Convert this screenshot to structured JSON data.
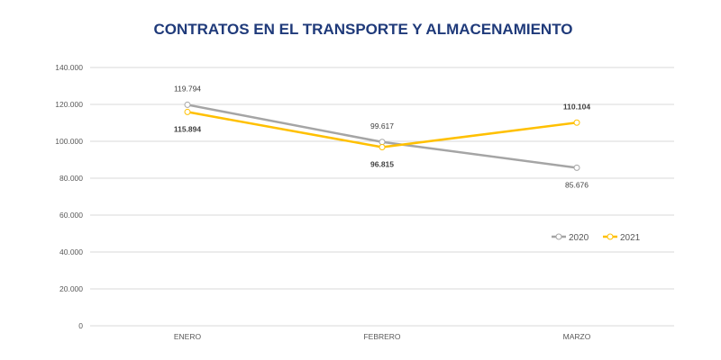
{
  "chart_data": {
    "type": "line",
    "title": "CONTRATOS EN EL TRANSPORTE Y ALMACENAMIENTO",
    "categories": [
      "ENERO",
      "FEBRERO",
      "MARZO"
    ],
    "series": [
      {
        "name": "2020",
        "values": [
          119794,
          99617,
          85676
        ],
        "labels": [
          "119.794",
          "99.617",
          "85.676"
        ],
        "color": "#a5a5a5",
        "label_bold": false
      },
      {
        "name": "2021",
        "values": [
          115894,
          96815,
          110104
        ],
        "labels": [
          "115.894",
          "96.815",
          "110.104"
        ],
        "color": "#ffc000",
        "label_bold": true
      }
    ],
    "ylim": [
      0,
      140000
    ],
    "yticks": [
      0,
      20000,
      40000,
      60000,
      80000,
      100000,
      120000,
      140000
    ],
    "ytick_labels": [
      "0",
      "20.000",
      "40.000",
      "60.000",
      "80.000",
      "100.000",
      "120.000",
      "140.000"
    ],
    "grid": true,
    "legend_position": "right"
  }
}
